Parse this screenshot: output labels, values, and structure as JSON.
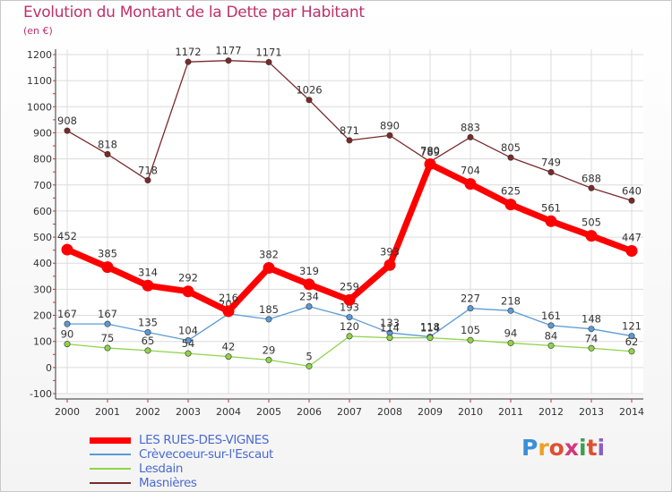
{
  "chart_data": {
    "type": "line",
    "title": "Evolution du Montant de la Dette par Habitant",
    "subtitle": "(en €)",
    "x": [
      "2000",
      "2001",
      "2002",
      "2003",
      "2004",
      "2005",
      "2006",
      "2007",
      "2008",
      "2009",
      "2010",
      "2011",
      "2012",
      "2013",
      "2014"
    ],
    "ylim": [
      -100,
      1200
    ],
    "yticks": [
      "-100",
      "0",
      "100",
      "200",
      "300",
      "400",
      "500",
      "600",
      "700",
      "800",
      "900",
      "1000",
      "1100",
      "1200"
    ],
    "grid": true,
    "legend_position": "bottom-left",
    "series": [
      {
        "name": "LES RUES-DES-VIGNES",
        "color": "#ff0000",
        "emphasis": true,
        "values": [
          452,
          385,
          314,
          292,
          216,
          382,
          319,
          259,
          393,
          780,
          704,
          625,
          561,
          505,
          447
        ],
        "labels": [
          "452",
          "385",
          "314",
          "292",
          "216",
          "382",
          "319",
          "259",
          "393",
          "780",
          "704",
          "625",
          "561",
          "505",
          "447"
        ]
      },
      {
        "name": "Crèvecoeur-sur-l'Escaut",
        "color": "#5b9bd5",
        "emphasis": false,
        "values": [
          167,
          167,
          135,
          104,
          206,
          185,
          234,
          193,
          133,
          118,
          227,
          218,
          161,
          148,
          121
        ],
        "labels": [
          "167",
          "167",
          "135",
          "104",
          "206",
          "185",
          "234",
          "193",
          "133",
          "118",
          "227",
          "218",
          "161",
          "148",
          "121"
        ]
      },
      {
        "name": "Lesdain",
        "color": "#8fd448",
        "emphasis": false,
        "values": [
          90,
          75,
          65,
          54,
          42,
          29,
          5,
          120,
          114,
          114,
          105,
          94,
          84,
          74,
          62
        ],
        "labels": [
          "90",
          "75",
          "65",
          "54",
          "42",
          "29",
          "5",
          "120",
          "114",
          "114",
          "105",
          "94",
          "84",
          "74",
          "62"
        ]
      },
      {
        "name": "Masnières",
        "color": "#7a2a2a",
        "emphasis": false,
        "values": [
          908,
          818,
          718,
          1172,
          1177,
          1171,
          1026,
          871,
          890,
          789,
          883,
          805,
          749,
          688,
          640
        ],
        "labels": [
          "908",
          "818",
          "718",
          "1172",
          "1177",
          "1171",
          "1026",
          "871",
          "890",
          "789",
          "883",
          "805",
          "749",
          "688",
          "640"
        ]
      }
    ]
  },
  "logo": {
    "letters": [
      "P",
      "r",
      "o",
      "x",
      "i",
      "t",
      "i"
    ],
    "colors": [
      "#3a8fd8",
      "#f0a020",
      "#e05030",
      "#d23a7a",
      "#3aa050",
      "#e05030",
      "#8a60c0"
    ]
  }
}
